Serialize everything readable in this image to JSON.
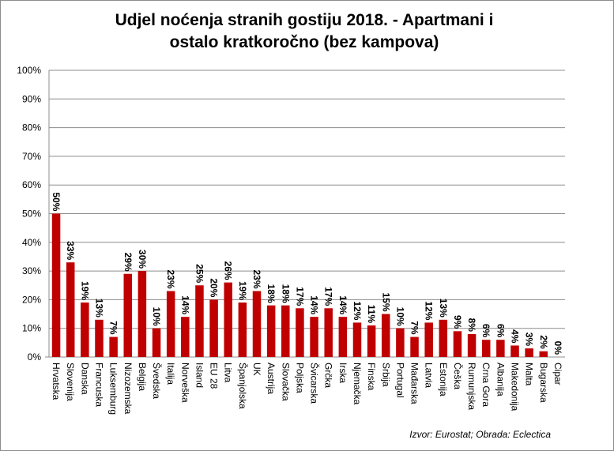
{
  "chart_data": {
    "type": "bar",
    "title": [
      "Udjel noćenja stranih gostiju 2018. - Apartmani  i",
      "ostalo kratkoročno (bez kampova)"
    ],
    "categories": [
      "Hrvatska",
      "Slovenija",
      "Danska",
      "Francuska",
      "Luksemburg",
      "Nizozemska",
      "Belgija",
      "Švedska",
      "Italija",
      "Norveška",
      "Island",
      "EU 28",
      "Litva",
      "Španjolska",
      "UK",
      "Austrija",
      "Slovačka",
      "Poljska",
      "Švicarska",
      "Grčka",
      "Irska",
      "Njemačka",
      "Finska",
      "Srbija",
      "Portugal",
      "Mađarska",
      "Latvia",
      "Estonija",
      "Češka",
      "Rumunjska",
      "Crna Gora",
      "Albanija",
      "Makedonija",
      "Malta",
      "Bugarska",
      "Cipar"
    ],
    "values": [
      50,
      33,
      19,
      13,
      7,
      29,
      30,
      10,
      23,
      14,
      25,
      20,
      26,
      19,
      23,
      18,
      18,
      17,
      14,
      17,
      14,
      12,
      11,
      15,
      10,
      7,
      12,
      13,
      9,
      8,
      6,
      6,
      4,
      3,
      2,
      0
    ],
    "data_labels": [
      "50%",
      "33%",
      "19%",
      "13%",
      "7%",
      "29%",
      "30%",
      "10%",
      "23%",
      "14%",
      "25%",
      "20%",
      "26%",
      "19%",
      "23%",
      "18%",
      "18%",
      "17%",
      "14%",
      "17%",
      "14%",
      "12%",
      "11%",
      "15%",
      "10%",
      "7%",
      "12%",
      "13%",
      "9%",
      "8%",
      "6%",
      "6%",
      "4%",
      "3%",
      "2%",
      "0%"
    ],
    "y_ticks": [
      "0%",
      "10%",
      "20%",
      "30%",
      "40%",
      "50%",
      "60%",
      "70%",
      "80%",
      "90%",
      "100%"
    ],
    "ylim": [
      0,
      100
    ],
    "xlabel": "",
    "ylabel": "",
    "grid": true,
    "legend": "none",
    "bar_color": "#C00000"
  },
  "source_note": "Izvor: Eurostat; Obrada: Eclectica"
}
